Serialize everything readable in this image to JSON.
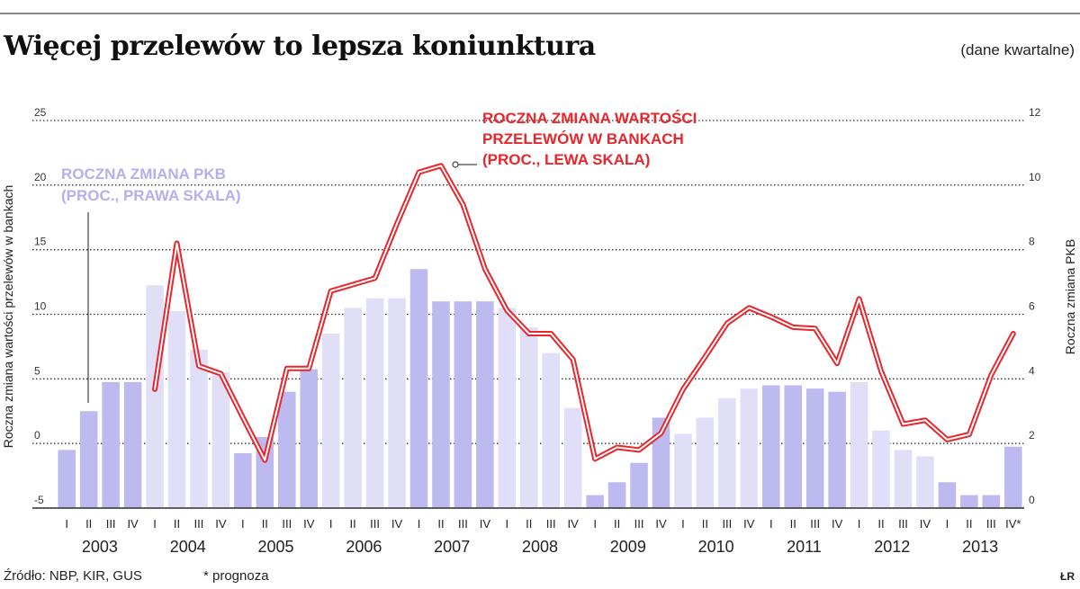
{
  "title": "Więcej przelewów to lepsza koniunktura",
  "subtitle": "(dane kwartalne)",
  "source": "Źródło: NBP, KIR, GUS",
  "note": "* prognoza",
  "credit": "ŁR",
  "chart_data": {
    "type": "bar+line",
    "left_axis": {
      "label": "Roczna zmiana wartości przelewów w bankach",
      "ticks": [
        "25",
        "20",
        "15",
        "10",
        "5",
        "0",
        "-5"
      ],
      "ylim": [
        -5,
        25
      ]
    },
    "right_axis": {
      "label": "Roczna zmiana PKB",
      "ticks": [
        "12",
        "10",
        "8",
        "6",
        "4",
        "2",
        "0"
      ],
      "ylim": [
        0,
        12
      ]
    },
    "quarters": [
      "I",
      "II",
      "III",
      "IV",
      "I",
      "II",
      "III",
      "IV",
      "I",
      "II",
      "III",
      "IV",
      "I",
      "II",
      "III",
      "IV",
      "I",
      "II",
      "III",
      "IV",
      "I",
      "II",
      "III",
      "IV",
      "I",
      "II",
      "III",
      "IV",
      "I",
      "II",
      "III",
      "IV",
      "I",
      "II",
      "III",
      "IV",
      "I",
      "II",
      "III",
      "IV",
      "I",
      "II",
      "III",
      "IV*"
    ],
    "years": [
      "2003",
      "2004",
      "2005",
      "2006",
      "2007",
      "2008",
      "2009",
      "2010",
      "2011",
      "2012",
      "2013"
    ],
    "series": [
      {
        "name": "ROCZNA ZMIANA PKB (PROC., PRAWA SKALA)",
        "axis": "right",
        "kind": "bar",
        "color": "#b9b6ee",
        "values": [
          1.8,
          3.0,
          3.9,
          3.9,
          6.9,
          6.1,
          4.9,
          4.2,
          1.7,
          2.2,
          3.6,
          4.3,
          5.4,
          6.2,
          6.5,
          6.5,
          7.4,
          6.4,
          6.4,
          6.4,
          6.2,
          5.6,
          4.8,
          3.1,
          0.4,
          0.8,
          1.4,
          2.8,
          2.3,
          2.8,
          3.4,
          3.7,
          3.8,
          3.8,
          3.7,
          3.6,
          3.9,
          2.4,
          1.8,
          1.6,
          0.8,
          0.4,
          0.4,
          1.9
        ]
      },
      {
        "name": "ROCZNA ZMIANA WARTOŚCI PRZELEWÓW W BANKACH (PROC., LEWA SKALA)",
        "axis": "left",
        "kind": "line",
        "color": "#e8262b",
        "values": [
          null,
          null,
          null,
          null,
          4.2,
          15.5,
          6.0,
          5.4,
          2.0,
          -1.3,
          5.8,
          5.8,
          11.8,
          12.3,
          12.8,
          17.0,
          21.0,
          21.5,
          18.5,
          13.5,
          10.3,
          8.5,
          8.5,
          6.5,
          -1.2,
          -0.3,
          -0.5,
          0.8,
          4.2,
          6.7,
          9.3,
          10.5,
          9.8,
          9.0,
          8.9,
          6.2,
          11.2,
          5.6,
          1.5,
          1.8,
          0.3,
          0.7,
          5.3,
          8.5
        ]
      }
    ],
    "grid": "dotted horizontal"
  }
}
